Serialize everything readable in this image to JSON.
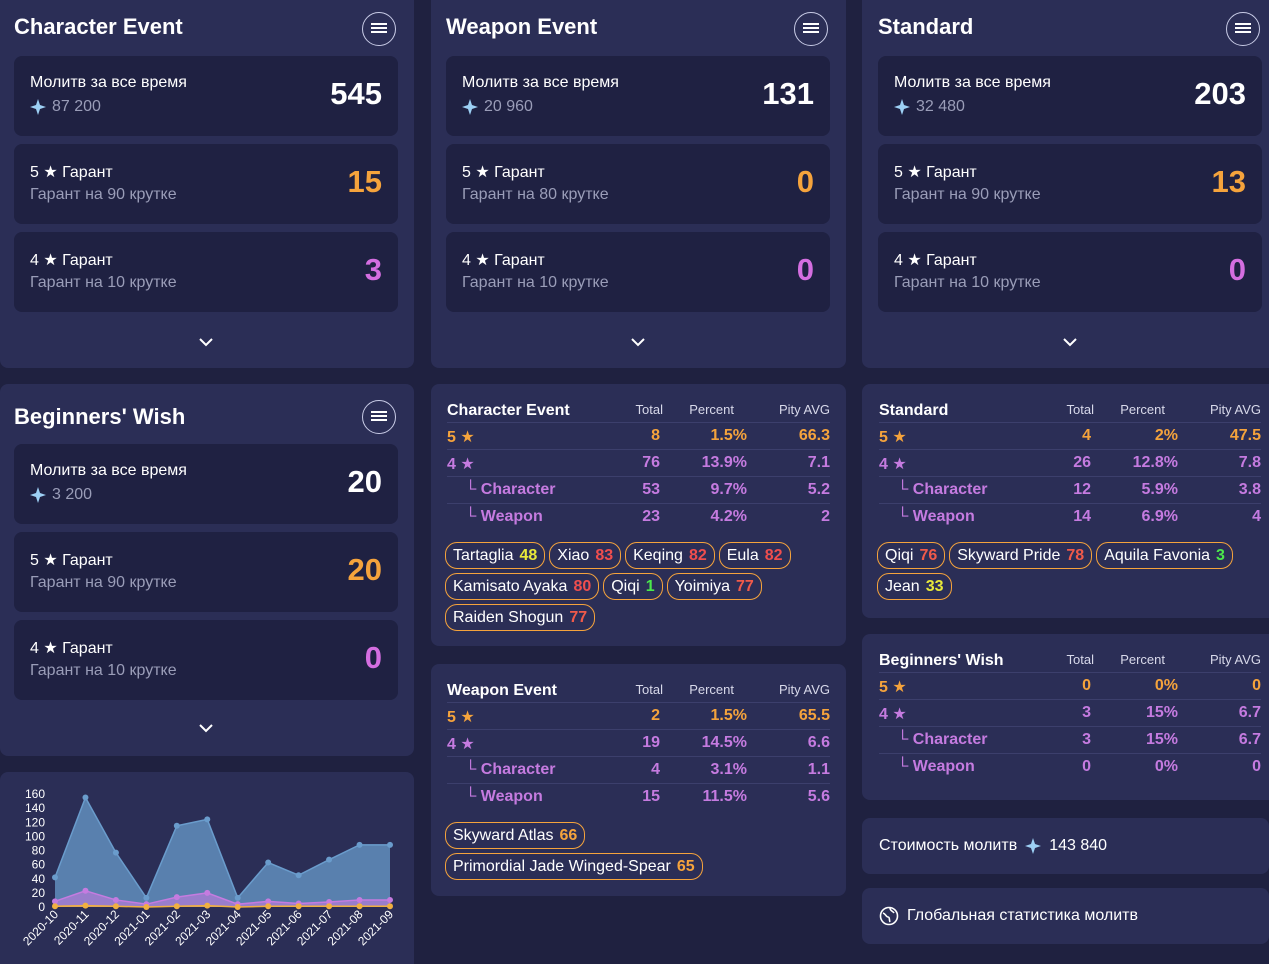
{
  "colors": {
    "bg": "#1f2140",
    "panel": "#2b2e56",
    "card": "#1f2142",
    "orange": "#f5a33c",
    "violet": "#d46ee0",
    "red": "#f04e4e",
    "yellow": "#e8e83a",
    "green": "#4be84b"
  },
  "banners": [
    {
      "title": "Character Event",
      "all_time_label": "Молитв за все время",
      "all_time_gems": "87 200",
      "all_time_total": "545",
      "five_label": "5 ★ Гарант",
      "five_sub": "Гарант на 90 крутке",
      "five_value": "15",
      "four_label": "4 ★ Гарант",
      "four_sub": "Гарант на 10 крутке",
      "four_value": "3"
    },
    {
      "title": "Weapon Event",
      "all_time_label": "Молитв за все время",
      "all_time_gems": "20 960",
      "all_time_total": "131",
      "five_label": "5 ★ Гарант",
      "five_sub": "Гарант на 80 крутке",
      "five_value": "0",
      "four_label": "4 ★ Гарант",
      "four_sub": "Гарант на 10 крутке",
      "four_value": "0"
    },
    {
      "title": "Standard",
      "all_time_label": "Молитв за все время",
      "all_time_gems": "32 480",
      "all_time_total": "203",
      "five_label": "5 ★ Гарант",
      "five_sub": "Гарант на 90 крутке",
      "five_value": "13",
      "four_label": "4 ★ Гарант",
      "four_sub": "Гарант на 10 крутке",
      "four_value": "0"
    },
    {
      "title": "Beginners' Wish",
      "all_time_label": "Молитв за все время",
      "all_time_gems": "3 200",
      "all_time_total": "20",
      "five_label": "5 ★ Гарант",
      "five_sub": "Гарант на 90 крутке",
      "five_value": "20",
      "four_label": "4 ★ Гарант",
      "four_sub": "Гарант на 10 крутке",
      "four_value": "0"
    }
  ],
  "stats": [
    {
      "title": "Character Event",
      "col_total": "Total",
      "col_percent": "Percent",
      "col_pity": "Pity AVG",
      "rows": [
        {
          "label": "5 ★",
          "total": "8",
          "percent": "1.5%",
          "pity": "66.3"
        },
        {
          "label": "4 ★",
          "total": "76",
          "percent": "13.9%",
          "pity": "7.1"
        },
        {
          "label": "└ Character",
          "total": "53",
          "percent": "9.7%",
          "pity": "5.2"
        },
        {
          "label": "└ Weapon",
          "total": "23",
          "percent": "4.2%",
          "pity": "2"
        }
      ],
      "tags": [
        {
          "name": "Tartaglia",
          "pity": "48",
          "color": "#e8e83a"
        },
        {
          "name": "Xiao",
          "pity": "83",
          "color": "#f04e4e"
        },
        {
          "name": "Keqing",
          "pity": "82",
          "color": "#f04e4e"
        },
        {
          "name": "Eula",
          "pity": "82",
          "color": "#f04e4e"
        },
        {
          "name": "Kamisato Ayaka",
          "pity": "80",
          "color": "#f04e4e"
        },
        {
          "name": "Qiqi",
          "pity": "1",
          "color": "#4be84b"
        },
        {
          "name": "Yoimiya",
          "pity": "77",
          "color": "#f05a4a"
        },
        {
          "name": "Raiden Shogun",
          "pity": "77",
          "color": "#f05a4a"
        }
      ]
    },
    {
      "title": "Weapon Event",
      "col_total": "Total",
      "col_percent": "Percent",
      "col_pity": "Pity AVG",
      "rows": [
        {
          "label": "5 ★",
          "total": "2",
          "percent": "1.5%",
          "pity": "65.5"
        },
        {
          "label": "4 ★",
          "total": "19",
          "percent": "14.5%",
          "pity": "6.6"
        },
        {
          "label": "└ Character",
          "total": "4",
          "percent": "3.1%",
          "pity": "1.1"
        },
        {
          "label": "└ Weapon",
          "total": "15",
          "percent": "11.5%",
          "pity": "5.6"
        }
      ],
      "tags": [
        {
          "name": "Skyward Atlas",
          "pity": "66",
          "color": "#f5a33c"
        },
        {
          "name": "Primordial Jade Winged-Spear",
          "pity": "65",
          "color": "#f5a33c"
        }
      ]
    },
    {
      "title": "Standard",
      "col_total": "Total",
      "col_percent": "Percent",
      "col_pity": "Pity AVG",
      "rows": [
        {
          "label": "5 ★",
          "total": "4",
          "percent": "2%",
          "pity": "47.5"
        },
        {
          "label": "4 ★",
          "total": "26",
          "percent": "12.8%",
          "pity": "7.8"
        },
        {
          "label": "└ Character",
          "total": "12",
          "percent": "5.9%",
          "pity": "3.8"
        },
        {
          "label": "└ Weapon",
          "total": "14",
          "percent": "6.9%",
          "pity": "4"
        }
      ],
      "tags": [
        {
          "name": "Qiqi",
          "pity": "76",
          "color": "#f05a4a"
        },
        {
          "name": "Skyward Pride",
          "pity": "78",
          "color": "#f05a4a"
        },
        {
          "name": "Aquila Favonia",
          "pity": "3",
          "color": "#4be84b"
        },
        {
          "name": "Jean",
          "pity": "33",
          "color": "#e8e83a"
        }
      ]
    },
    {
      "title": "Beginners' Wish",
      "col_total": "Total",
      "col_percent": "Percent",
      "col_pity": "Pity AVG",
      "rows": [
        {
          "label": "5 ★",
          "total": "0",
          "percent": "0%",
          "pity": "0"
        },
        {
          "label": "4 ★",
          "total": "3",
          "percent": "15%",
          "pity": "6.7"
        },
        {
          "label": "└ Character",
          "total": "3",
          "percent": "15%",
          "pity": "6.7"
        },
        {
          "label": "└ Weapon",
          "total": "0",
          "percent": "0%",
          "pity": "0"
        }
      ],
      "tags": []
    }
  ],
  "cost": {
    "label": "Стоимость молитв",
    "value": "143 840"
  },
  "global": {
    "label": "Глобальная статистика молитв"
  },
  "chart_data": {
    "type": "area",
    "x": [
      "2020-10",
      "2020-11",
      "2020-12",
      "2021-01",
      "2021-02",
      "2021-03",
      "2021-04",
      "2021-05",
      "2021-06",
      "2021-07",
      "2021-08",
      "2021-09"
    ],
    "yticks": [
      "0",
      "20",
      "40",
      "60",
      "80",
      "100",
      "120",
      "140",
      "160"
    ],
    "ylim": [
      0,
      160
    ],
    "series": [
      {
        "values": [
          42,
          155,
          77,
          13,
          115,
          124,
          13,
          63,
          45,
          67,
          88,
          88
        ],
        "color": "#6a9ccc"
      },
      {
        "values": [
          8,
          23,
          10,
          4,
          14,
          20,
          4,
          8,
          5,
          7,
          10,
          10
        ],
        "color": "#c57be0"
      },
      {
        "values": [
          1,
          2,
          1,
          0,
          1,
          2,
          0,
          1,
          1,
          1,
          1,
          1
        ],
        "color": "#f0b040"
      }
    ]
  }
}
